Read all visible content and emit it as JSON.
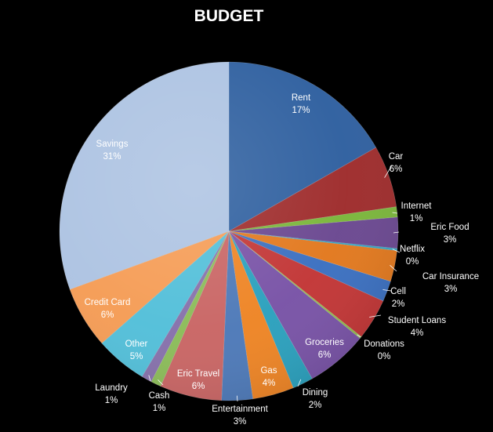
{
  "chart_data": {
    "type": "pie",
    "title": "BUDGET",
    "slices": [
      {
        "name": "Rent",
        "percent": 17,
        "value": 17,
        "color": "#2e5f9f"
      },
      {
        "name": "Car",
        "percent": 6,
        "value": 6,
        "color": "#9e2b2b"
      },
      {
        "name": "Internet",
        "percent": 1,
        "value": 1,
        "color": "#7ab63a"
      },
      {
        "name": "Eric Food",
        "percent": 3,
        "value": 3,
        "color": "#6a4790"
      },
      {
        "name": "Netflix",
        "percent": 0,
        "value": 0.2,
        "color": "#2fa3c2"
      },
      {
        "name": "Car Insurance",
        "percent": 3,
        "value": 3,
        "color": "#e2781d"
      },
      {
        "name": "Cell",
        "percent": 2,
        "value": 2,
        "color": "#3a6fc0"
      },
      {
        "name": "Student Loans",
        "percent": 4,
        "value": 4,
        "color": "#c23535"
      },
      {
        "name": "Donations",
        "percent": 0,
        "value": 0.2,
        "color": "#8fbd4a"
      },
      {
        "name": "Groceries",
        "percent": 6,
        "value": 6,
        "color": "#7852a6"
      },
      {
        "name": "Dining",
        "percent": 2,
        "value": 2,
        "color": "#2aa0bd"
      },
      {
        "name": "Gas",
        "percent": 4,
        "value": 4,
        "color": "#ee8424"
      },
      {
        "name": "Entertainment",
        "percent": 3,
        "value": 3,
        "color": "#4d79b8"
      },
      {
        "name": "Eric Travel",
        "percent": 6,
        "value": 6,
        "color": "#c96564"
      },
      {
        "name": "Cash",
        "percent": 1,
        "value": 1,
        "color": "#8bbc58"
      },
      {
        "name": "Laundry",
        "percent": 1,
        "value": 1,
        "color": "#8670ab"
      },
      {
        "name": "Other",
        "percent": 5,
        "value": 5,
        "color": "#52bfd9"
      },
      {
        "name": "Credit Card",
        "percent": 6,
        "value": 6,
        "color": "#f59c55"
      },
      {
        "name": "Savings",
        "percent": 31,
        "value": 31,
        "color": "#adc3e2"
      }
    ],
    "label_format": "{name}\n{percent}%",
    "legend": "none",
    "start_angle_deg": 0,
    "direction": "clockwise"
  }
}
